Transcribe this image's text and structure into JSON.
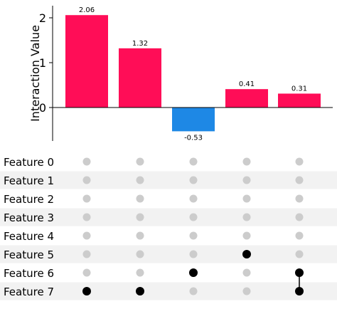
{
  "chart_data": {
    "type": "bar",
    "ylabel": "Interaction Value",
    "ylim": [
      -0.75,
      2.3
    ],
    "yticks": [
      0,
      1,
      2
    ],
    "values": [
      2.06,
      1.32,
      -0.53,
      0.41,
      0.31
    ],
    "value_labels": [
      "2.06",
      "1.32",
      "-0.53",
      "0.41",
      "0.31"
    ],
    "features": [
      "Feature 0",
      "Feature 1",
      "Feature 2",
      "Feature 3",
      "Feature 4",
      "Feature 5",
      "Feature 6",
      "Feature 7"
    ],
    "active_features": [
      [
        7
      ],
      [
        7
      ],
      [
        6
      ],
      [
        5
      ],
      [
        6,
        7
      ]
    ],
    "colors": {
      "positive": "#ff0d57",
      "negative": "#1e88e5",
      "active_dot": "#000000",
      "inactive_dot": "#cccccc",
      "stripe": "#f2f2f2"
    }
  }
}
